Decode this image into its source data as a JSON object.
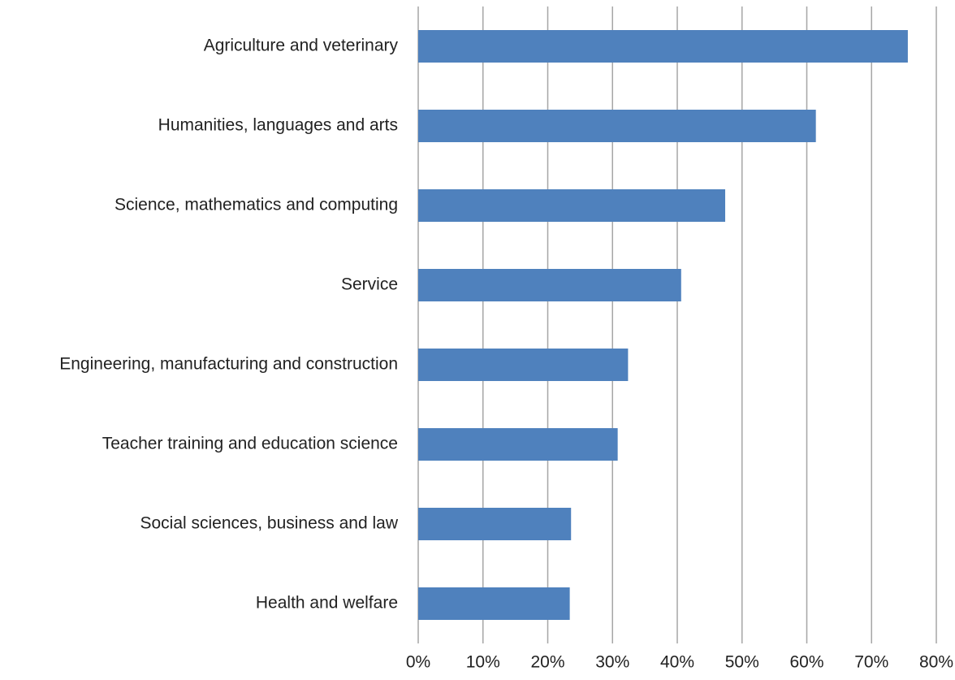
{
  "chart_data": {
    "type": "hbar",
    "categories": [
      "Agriculture and veterinary",
      "Humanities, languages and arts",
      "Science, mathematics and computing",
      "Service",
      "Engineering, manufacturing and construction",
      "Teacher training and education science",
      "Social sciences, business and law",
      "Health and welfare"
    ],
    "values": [
      75.6,
      61.4,
      47.4,
      40.6,
      32.4,
      30.8,
      23.6,
      23.4
    ],
    "color": "#4f81bd",
    "xlim": [
      0,
      80
    ],
    "xticks": [
      {
        "value": 0,
        "label": "0%"
      },
      {
        "value": 10,
        "label": "10%"
      },
      {
        "value": 20,
        "label": "20%"
      },
      {
        "value": 30,
        "label": "30%"
      },
      {
        "value": 40,
        "label": "40%"
      },
      {
        "value": 50,
        "label": "50%"
      },
      {
        "value": 60,
        "label": "60%"
      },
      {
        "value": 70,
        "label": "70%"
      },
      {
        "value": 80,
        "label": "80%"
      }
    ],
    "grid": true
  }
}
